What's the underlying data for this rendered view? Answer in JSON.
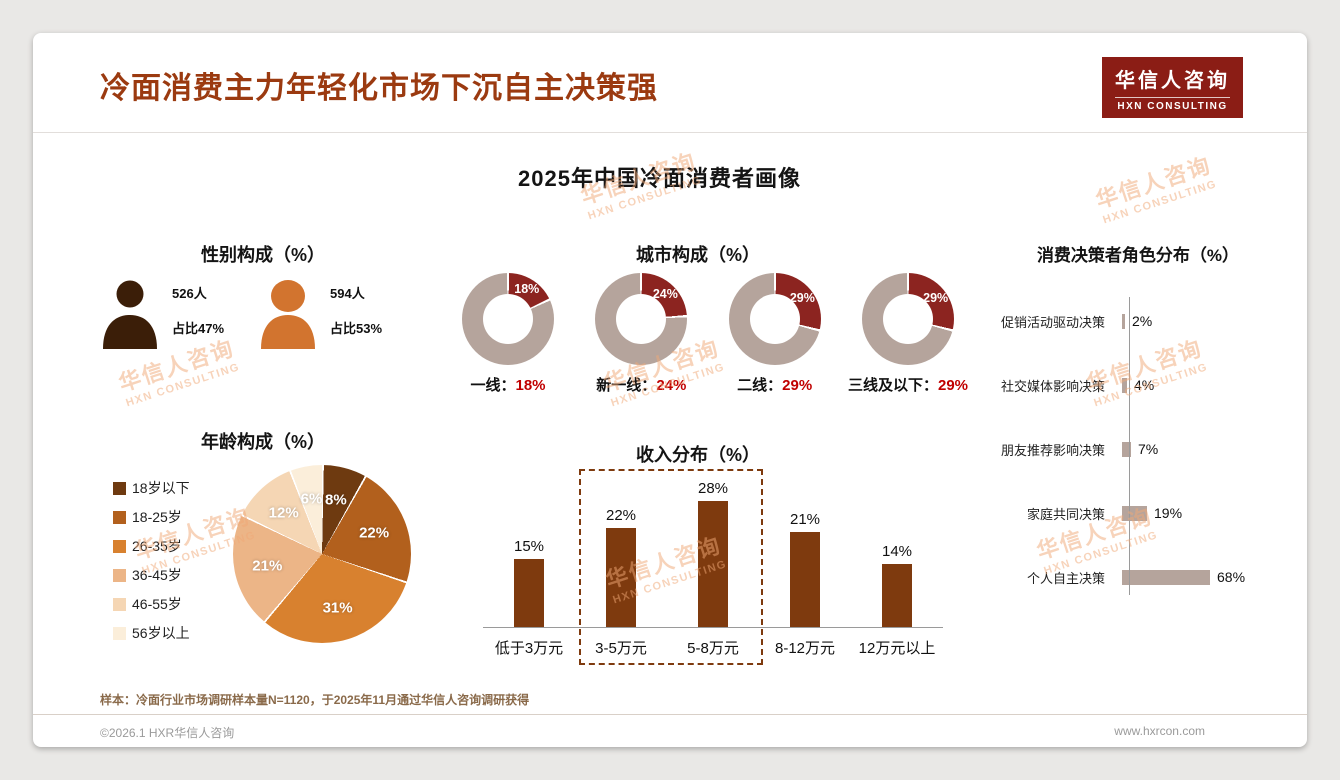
{
  "page": {
    "title": "冷面消费主力年轻化市场下沉自主决策强",
    "logo": {
      "cn": "华信人咨询",
      "en": "HXN CONSULTING"
    },
    "watermark": {
      "line1": "华信人咨询",
      "line2": "HXN CONSULTING"
    },
    "sample_note": "样本：冷面行业市场调研样本量N=1120，于2025年11月通过华信人咨询调研获得",
    "footer_left": "©2026.1 HXR华信人咨询",
    "footer_right": "www.hxrcon.com"
  },
  "main_title": "2025年中国冷面消费者画像",
  "chart_data": [
    {
      "type": "pictogram",
      "title": "性别构成（%）",
      "items": [
        {
          "gender": "male",
          "count": "526人",
          "share": "占比47%",
          "color": "#3b1e08"
        },
        {
          "gender": "female",
          "count": "594人",
          "share": "占比53%",
          "color": "#d2742f"
        }
      ]
    },
    {
      "type": "donut",
      "title": "城市构成（%）",
      "highlight_color": "#8c2420",
      "base_color": "#b5a49c",
      "value_color": "#c00000",
      "items": [
        {
          "label": "一线：",
          "value": 18
        },
        {
          "label": "新一线：",
          "value": 24
        },
        {
          "label": "二线：",
          "value": 29
        },
        {
          "label": "三线及以下：",
          "value": 29
        }
      ]
    },
    {
      "type": "pie",
      "title": "年龄构成（%）",
      "categories": [
        "18岁以下",
        "18-25岁",
        "26-35岁",
        "36-45岁",
        "46-55岁",
        "56岁以上"
      ],
      "values": [
        8,
        22,
        31,
        21,
        12,
        6
      ],
      "colors": [
        "#6e3a10",
        "#b2601d",
        "#d8812f",
        "#ecb587",
        "#f5d6b4",
        "#fbeeda"
      ]
    },
    {
      "type": "bar",
      "title": "收入分布（%）",
      "categories": [
        "低于3万元",
        "3-5万元",
        "5-8万元",
        "8-12万元",
        "12万元以上"
      ],
      "values": [
        15,
        22,
        28,
        21,
        14
      ],
      "bar_color": "#7e3a0e",
      "highlight_indices": [
        1,
        2
      ]
    },
    {
      "type": "hbar",
      "title": "消费决策者角色分布（%）",
      "categories": [
        "促销活动驱动决策",
        "社交媒体影响决策",
        "朋友推荐影响决策",
        "家庭共同决策",
        "个人自主决策"
      ],
      "values": [
        2,
        4,
        7,
        19,
        68
      ],
      "bar_color": "#b5a49c"
    }
  ]
}
